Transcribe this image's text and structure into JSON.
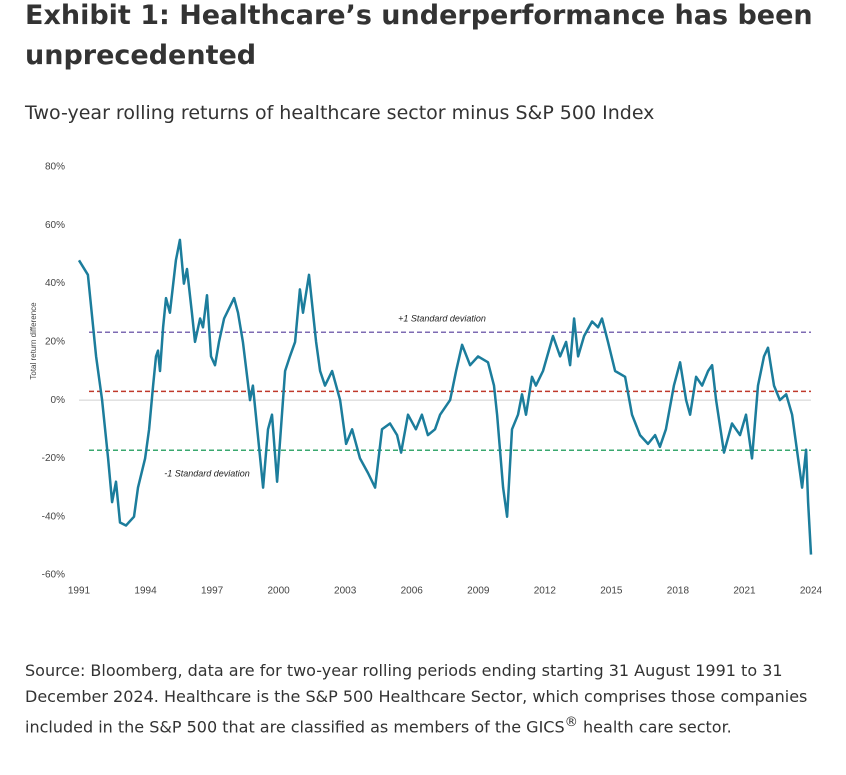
{
  "header": {
    "title": "Exhibit 1: Healthcare’s underperformance has been unprecedented",
    "subtitle": "Two-year rolling returns of healthcare sector minus S&P 500 Index"
  },
  "chart_data": {
    "type": "line",
    "y_label": "Total return difference",
    "x": [
      1991.0,
      1991.4,
      1991.77,
      1992.04,
      1992.31,
      1992.49,
      1992.67,
      1992.85,
      1993.12,
      1993.48,
      1993.66,
      1993.98,
      1994.16,
      1994.34,
      1994.47,
      1994.56,
      1994.65,
      1994.79,
      1994.92,
      1995.1,
      1995.37,
      1995.55,
      1995.73,
      1995.87,
      1996.09,
      1996.23,
      1996.46,
      1996.59,
      1996.77,
      1996.95,
      1997.13,
      1997.31,
      1997.54,
      1997.99,
      1998.17,
      1998.39,
      1998.71,
      1998.84,
      1999.3,
      1999.52,
      1999.7,
      1999.93,
      2000.29,
      2000.51,
      2000.74,
      2000.96,
      2001.1,
      2001.37,
      2001.69,
      2001.87,
      2002.09,
      2002.41,
      2002.77,
      2003.04,
      2003.31,
      2003.67,
      2004.03,
      2004.35,
      2004.66,
      2005.02,
      2005.34,
      2005.52,
      2005.83,
      2006.19,
      2006.46,
      2006.73,
      2007.05,
      2007.28,
      2007.73,
      2008.0,
      2008.27,
      2008.63,
      2008.99,
      2009.44,
      2009.71,
      2009.85,
      2010.12,
      2010.3,
      2010.52,
      2010.79,
      2010.97,
      2011.15,
      2011.42,
      2011.6,
      2011.92,
      2012.37,
      2012.69,
      2012.96,
      2013.14,
      2013.32,
      2013.5,
      2013.77,
      2014.13,
      2014.4,
      2014.58,
      2014.85,
      2015.17,
      2015.62,
      2015.93,
      2016.29,
      2016.65,
      2016.97,
      2017.19,
      2017.46,
      2017.82,
      2018.1,
      2018.37,
      2018.55,
      2018.82,
      2019.09,
      2019.36,
      2019.54,
      2019.72,
      2020.08,
      2020.44,
      2020.8,
      2021.07,
      2021.34,
      2021.61,
      2021.88,
      2022.06,
      2022.33,
      2022.6,
      2022.88,
      2023.15,
      2023.42,
      2023.6,
      2023.78,
      2023.87,
      2024.0
    ],
    "series": [
      {
        "color": "#1c7d9c",
        "values": [
          48,
          43,
          15,
          0,
          -20,
          -35,
          -28,
          -42,
          -43,
          -40,
          -30,
          -20,
          -10,
          5,
          15,
          17,
          10,
          25,
          35,
          30,
          48,
          55,
          40,
          45,
          30,
          20,
          28,
          25,
          36,
          15,
          12,
          20,
          28,
          35,
          30,
          20,
          0,
          5,
          -30,
          -10,
          -5,
          -28,
          10,
          15,
          20,
          38,
          30,
          43,
          20,
          10,
          5,
          10,
          0,
          -15,
          -10,
          -20,
          -25,
          -30,
          -10,
          -8,
          -12,
          -18,
          -5,
          -10,
          -5,
          -12,
          -10,
          -5,
          0,
          10,
          19,
          12,
          15,
          13,
          5,
          -5,
          -30,
          -40,
          -10,
          -5,
          2,
          -5,
          8,
          5,
          10,
          22,
          15,
          20,
          12,
          28,
          15,
          22,
          27,
          25,
          28,
          20,
          10,
          8,
          -5,
          -12,
          -15,
          -12,
          -16,
          -10,
          5,
          13,
          0,
          -5,
          8,
          5,
          10,
          12,
          0,
          -18,
          -8,
          -12,
          -5,
          -20,
          5,
          15,
          18,
          5,
          0,
          2,
          -5,
          -20,
          -30,
          -17,
          -35,
          -53
        ]
      }
    ],
    "reference_lines": [
      {
        "value": 23.3,
        "color": "#7e6bb3",
        "label": "+1 Standard deviation"
      },
      {
        "value": 3,
        "color": "#c0392b"
      },
      {
        "value": -17.2,
        "color": "#3aa86f",
        "label": "-1 Standard deviation"
      }
    ],
    "xlim": [
      1991,
      2024
    ],
    "xticks": [
      1991,
      1994,
      1997,
      2000,
      2003,
      2006,
      2009,
      2012,
      2015,
      2018,
      2021,
      2024
    ],
    "ylim": [
      -60,
      80
    ],
    "yticks": [
      {
        "value": -60,
        "label": "-60%"
      },
      {
        "value": -40,
        "label": "-40%"
      },
      {
        "value": -20,
        "label": "-20%"
      },
      {
        "value": 0,
        "label": "0%"
      },
      {
        "value": 20,
        "label": "20%"
      },
      {
        "value": 40,
        "label": "40%"
      },
      {
        "value": 60,
        "label": "60%"
      },
      {
        "value": 80,
        "label": "80%"
      }
    ]
  },
  "source": {
    "text": "Source: Bloomberg, data are for two-year rolling periods ending starting 31 August 1991 to 31 December 2024. Healthcare is the S&P 500 Healthcare Sector, which comprises those companies included in the S&P 500 that are classified as members of the GICS",
    "superscript": "®",
    "tail": " health care sector."
  }
}
